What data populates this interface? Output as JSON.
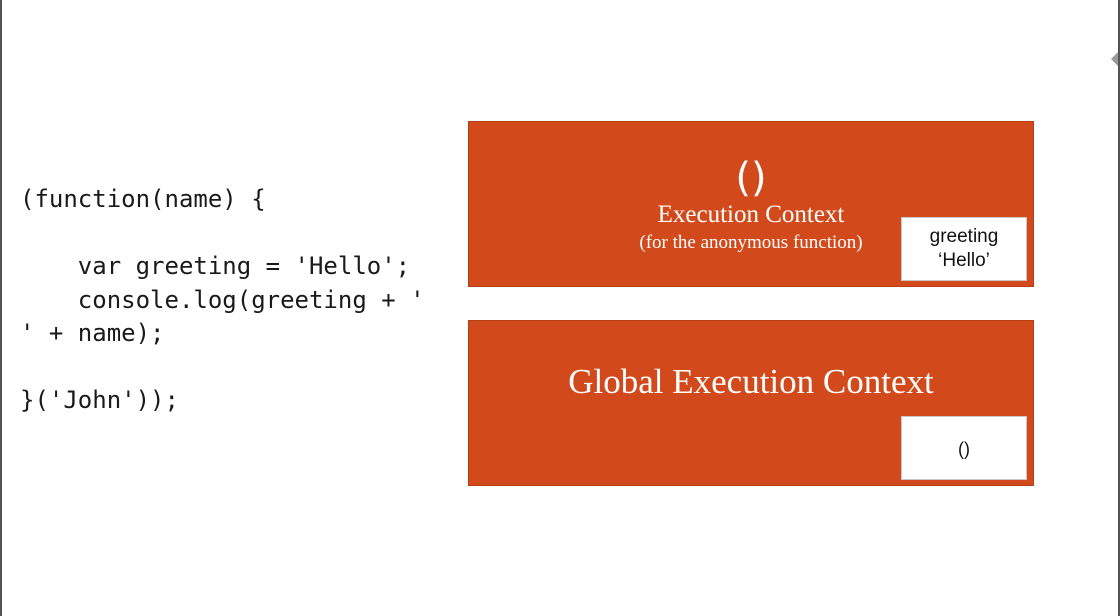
{
  "code": {
    "lines": [
      "(function(name) {",
      "",
      "    var greeting = 'Hello';",
      "    console.log(greeting + '",
      "' + name);",
      "",
      "}('John'));"
    ]
  },
  "function_context": {
    "symbol": "()",
    "title": "Execution Context",
    "subtitle": "(for the anonymous function)",
    "variable": {
      "name": "greeting",
      "value": "‘Hello’"
    }
  },
  "global_context": {
    "title": "Global Execution Context",
    "variable": {
      "value": "()"
    }
  },
  "colors": {
    "context_fill": "#d24a1c",
    "text_on_context": "#ffffff"
  }
}
